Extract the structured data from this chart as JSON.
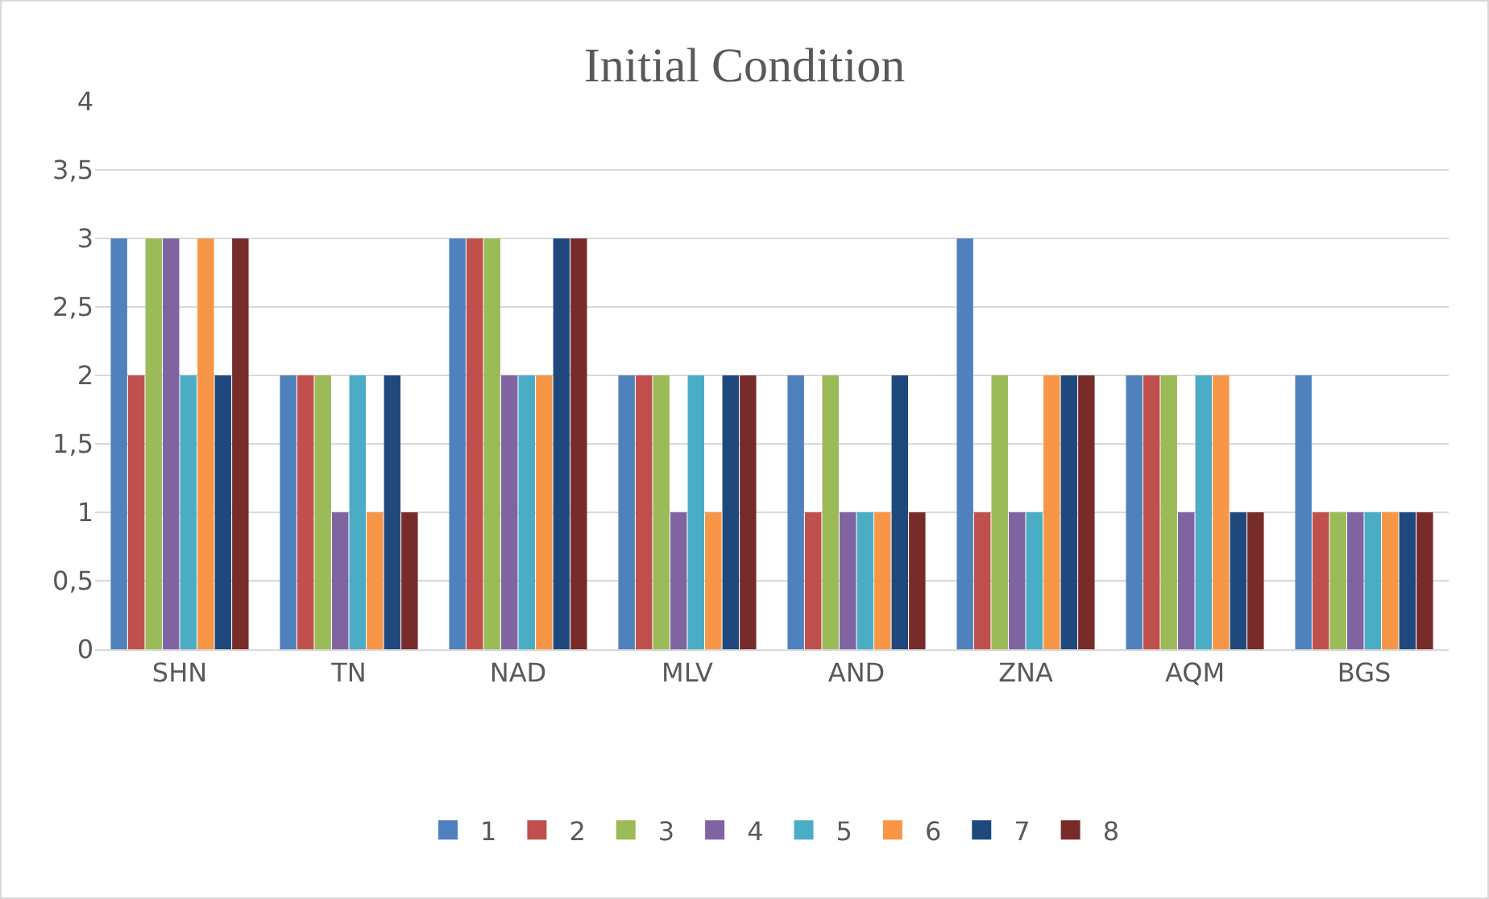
{
  "chart_data": {
    "type": "bar",
    "title": "Initial Condition",
    "categories": [
      "SHN",
      "TN",
      "NAD",
      "MLV",
      "AND",
      "ZNA",
      "AQM",
      "BGS"
    ],
    "series": [
      {
        "name": "1",
        "color": "#4f81bd",
        "values": [
          3,
          2,
          3,
          2,
          2,
          3,
          2,
          2
        ]
      },
      {
        "name": "2",
        "color": "#c0504d",
        "values": [
          2,
          2,
          3,
          2,
          1,
          1,
          2,
          1
        ]
      },
      {
        "name": "3",
        "color": "#9bbb59",
        "values": [
          3,
          2,
          3,
          2,
          2,
          2,
          2,
          1
        ]
      },
      {
        "name": "4",
        "color": "#8064a2",
        "values": [
          3,
          1,
          2,
          1,
          1,
          1,
          1,
          1
        ]
      },
      {
        "name": "5",
        "color": "#4bacc6",
        "values": [
          2,
          2,
          2,
          2,
          1,
          1,
          2,
          1
        ]
      },
      {
        "name": "6",
        "color": "#f79646",
        "values": [
          3,
          1,
          2,
          1,
          1,
          2,
          2,
          1
        ]
      },
      {
        "name": "7",
        "color": "#1f497d",
        "values": [
          2,
          2,
          3,
          2,
          2,
          2,
          1,
          1
        ]
      },
      {
        "name": "8",
        "color": "#772c2a",
        "values": [
          3,
          1,
          3,
          2,
          1,
          2,
          1,
          1
        ]
      }
    ],
    "ylim": [
      0,
      4
    ],
    "yticks": [
      0,
      {
        "value": 0.5,
        "label": "0,5"
      },
      1,
      {
        "value": 1.5,
        "label": "1,5"
      },
      2,
      {
        "value": 2.5,
        "label": "2,5"
      },
      3,
      {
        "value": 3.5,
        "label": "3,5"
      },
      4
    ],
    "grid": "y",
    "legend": "bottom"
  }
}
